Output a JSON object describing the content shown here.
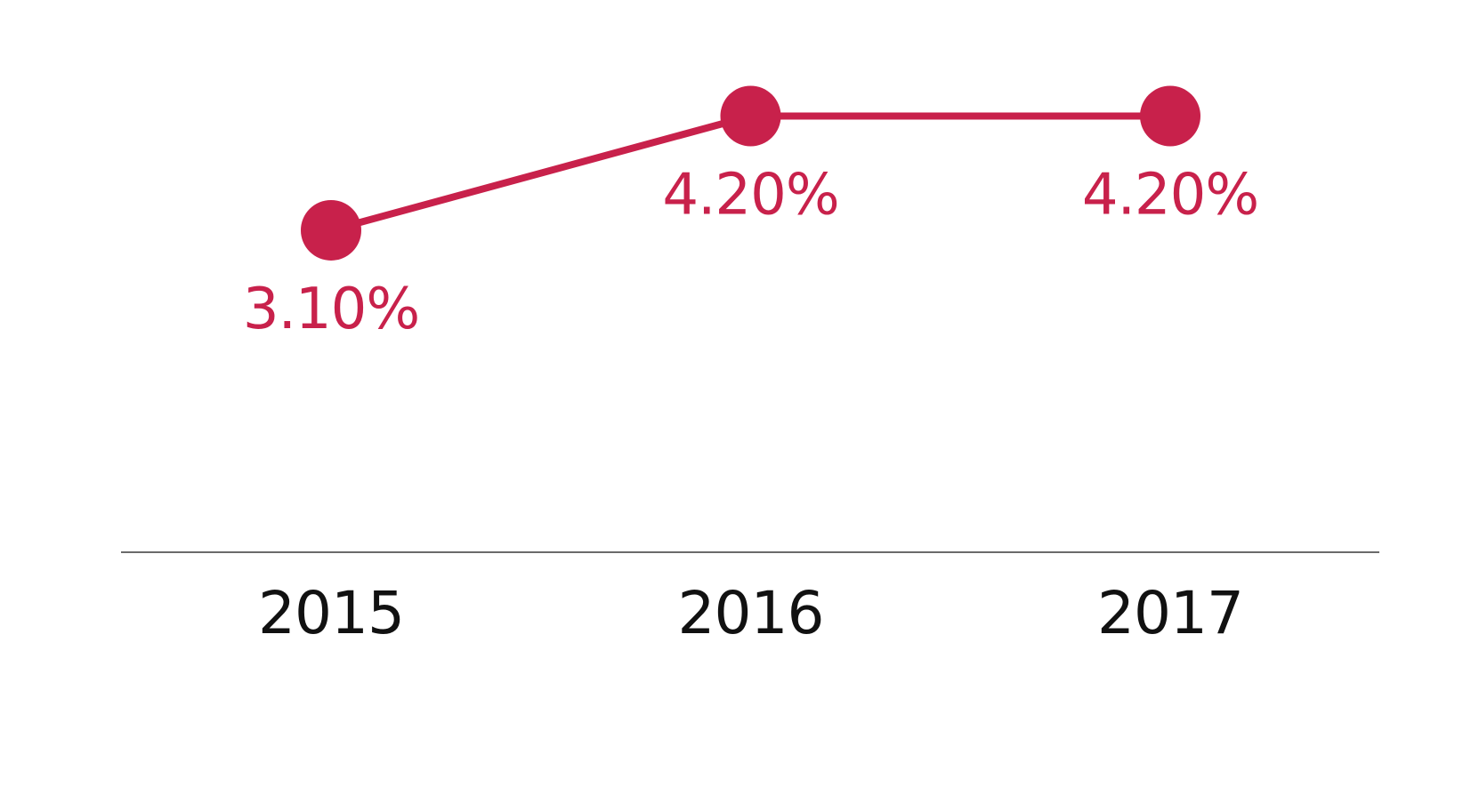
{
  "colors": {
    "series": "#c8214b",
    "axis": "#111111",
    "background": "#ffffff"
  },
  "chart_data": {
    "type": "line",
    "categories": [
      "2015",
      "2016",
      "2017"
    ],
    "series": [
      {
        "values": [
          3.1,
          4.2,
          4.2
        ],
        "labels": [
          "3.10%",
          "4.20%",
          "4.20%"
        ]
      }
    ],
    "ylim": [
      0,
      5.3
    ],
    "grid": false,
    "legend": "none",
    "markers": "filled-circle",
    "data_label_position": "below"
  }
}
